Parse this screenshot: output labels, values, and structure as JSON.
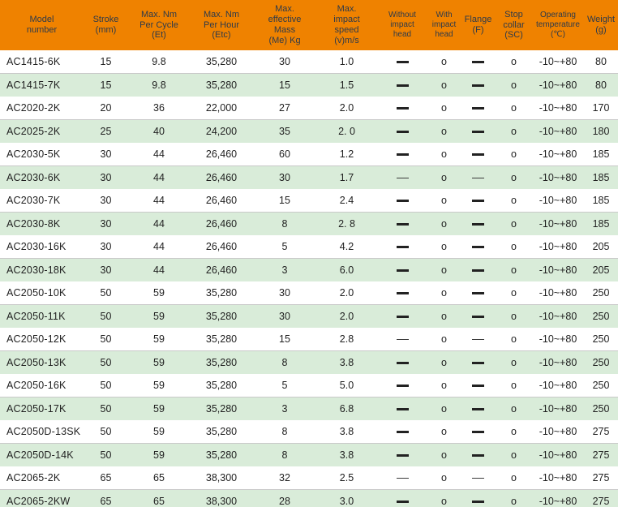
{
  "accent_colors": {
    "header_background": "#ef8200",
    "header_text": "#2e3a49",
    "row_green": "#d9ecd9",
    "row_white": "#ffffff",
    "separator": "#c9c9c9",
    "body_text": "#1f1f1f"
  },
  "chart_data": {
    "type": "table",
    "title": "",
    "columns": [
      {
        "id": "model",
        "label": "Model\nnumber",
        "small": false
      },
      {
        "id": "stroke",
        "label": "Stroke\n(mm)",
        "small": false
      },
      {
        "id": "max-nm-per-cycle",
        "label": "Max. Nm\nPer Cycle\n(Et)",
        "small": false
      },
      {
        "id": "max-nm-per-hour",
        "label": "Max. Nm\nPer Hour\n(Etc)",
        "small": false
      },
      {
        "id": "max-effective-mass",
        "label": "Max.\neffective\nMass\n(Me) Kg",
        "small": false
      },
      {
        "id": "max-impact-speed",
        "label": "Max.\nimpact\nspeed\n(v)m/s",
        "small": false
      },
      {
        "id": "without-impact-head",
        "label": "Without\nimpact\nhead",
        "small": true
      },
      {
        "id": "with-impact-head",
        "label": "With\nimpact\nhead",
        "small": true
      },
      {
        "id": "flange",
        "label": "Flange\n(F)",
        "small": false
      },
      {
        "id": "stop-collar",
        "label": "Stop\ncollar\n(SC)",
        "small": false
      },
      {
        "id": "operating-temperature",
        "label": "Operating\ntemperature\n(℃)",
        "small": true
      },
      {
        "id": "weight",
        "label": "Weight\n(g)",
        "small": false
      }
    ],
    "rows": [
      {
        "cells": [
          "AC1415-6K",
          "15",
          "9.8",
          "35,280",
          "30",
          "1.0",
          "—",
          "o",
          "—",
          "o",
          "-10~+80",
          "80"
        ],
        "dash_style": "bold"
      },
      {
        "cells": [
          "AC1415-7K",
          "15",
          "9.8",
          "35,280",
          "15",
          "1.5",
          "—",
          "o",
          "—",
          "o",
          "-10~+80",
          "80"
        ],
        "dash_style": "bold"
      },
      {
        "cells": [
          "AC2020-2K",
          "20",
          "36",
          "22,000",
          "27",
          "2.0",
          "—",
          "o",
          "—",
          "o",
          "-10~+80",
          "170"
        ],
        "dash_style": "bold"
      },
      {
        "cells": [
          "AC2025-2K",
          "25",
          "40",
          "24,200",
          "35",
          "2. 0",
          "—",
          "o",
          "—",
          "o",
          "-10~+80",
          "180"
        ],
        "dash_style": "bold"
      },
      {
        "cells": [
          "AC2030-5K",
          "30",
          "44",
          "26,460",
          "60",
          "1.2",
          "—",
          "o",
          "—",
          "o",
          "-10~+80",
          "185"
        ],
        "dash_style": "bold"
      },
      {
        "cells": [
          "AC2030-6K",
          "30",
          "44",
          "26,460",
          "30",
          "1.7",
          "—",
          "o",
          "—",
          "o",
          "-10~+80",
          "185"
        ],
        "dash_style": "thin"
      },
      {
        "cells": [
          "AC2030-7K",
          "30",
          "44",
          "26,460",
          "15",
          "2.4",
          "—",
          "o",
          "—",
          "o",
          "-10~+80",
          "185"
        ],
        "dash_style": "bold"
      },
      {
        "cells": [
          "AC2030-8K",
          "30",
          "44",
          "26,460",
          "8",
          "2. 8",
          "—",
          "o",
          "—",
          "o",
          "-10~+80",
          "185"
        ],
        "dash_style": "bold"
      },
      {
        "cells": [
          "AC2030-16K",
          "30",
          "44",
          "26,460",
          "5",
          "4.2",
          "—",
          "o",
          "—",
          "o",
          "-10~+80",
          "205"
        ],
        "dash_style": "bold"
      },
      {
        "cells": [
          "AC2030-18K",
          "30",
          "44",
          "26,460",
          "3",
          "6.0",
          "—",
          "o",
          "—",
          "o",
          "-10~+80",
          "205"
        ],
        "dash_style": "bold"
      },
      {
        "cells": [
          "AC2050-10K",
          "50",
          "59",
          "35,280",
          "30",
          "2.0",
          "—",
          "o",
          "—",
          "o",
          "-10~+80",
          "250"
        ],
        "dash_style": "bold"
      },
      {
        "cells": [
          "AC2050-11K",
          "50",
          "59",
          "35,280",
          "30",
          "2.0",
          "—",
          "o",
          "—",
          "o",
          "-10~+80",
          "250"
        ],
        "dash_style": "bold"
      },
      {
        "cells": [
          "AC2050-12K",
          "50",
          "59",
          "35,280",
          "15",
          "2.8",
          "—",
          "o",
          "—",
          "o",
          "-10~+80",
          "250"
        ],
        "dash_style": "thin"
      },
      {
        "cells": [
          "AC2050-13K",
          "50",
          "59",
          "35,280",
          "8",
          "3.8",
          "—",
          "o",
          "—",
          "o",
          "-10~+80",
          "250"
        ],
        "dash_style": "bold"
      },
      {
        "cells": [
          "AC2050-16K",
          "50",
          "59",
          "35,280",
          "5",
          "5.0",
          "—",
          "o",
          "—",
          "o",
          "-10~+80",
          "250"
        ],
        "dash_style": "bold"
      },
      {
        "cells": [
          "AC2050-17K",
          "50",
          "59",
          "35,280",
          "3",
          "6.8",
          "—",
          "o",
          "—",
          "o",
          "-10~+80",
          "250"
        ],
        "dash_style": "bold"
      },
      {
        "cells": [
          "AC2050D-13SK",
          "50",
          "59",
          "35,280",
          "8",
          "3.8",
          "—",
          "o",
          "—",
          "o",
          "-10~+80",
          "275"
        ],
        "dash_style": "bold"
      },
      {
        "cells": [
          "AC2050D-14K",
          "50",
          "59",
          "35,280",
          "8",
          "3.8",
          "—",
          "o",
          "—",
          "o",
          "-10~+80",
          "275"
        ],
        "dash_style": "bold"
      },
      {
        "cells": [
          "AC2065-2K",
          "65",
          "65",
          "38,300",
          "32",
          "2.5",
          "—",
          "o",
          "—",
          "o",
          "-10~+80",
          "275"
        ],
        "dash_style": "thin"
      },
      {
        "cells": [
          "AC2065-2KW",
          "65",
          "65",
          "38,300",
          "28",
          "3.0",
          "—",
          "o",
          "—",
          "o",
          "-10~+80",
          "275"
        ],
        "dash_style": "bold"
      }
    ],
    "layout": {
      "header_rows": 1,
      "alternating_row_colors": true,
      "first_data_row_color": "white",
      "grid": "horizontal-separators-only"
    }
  }
}
